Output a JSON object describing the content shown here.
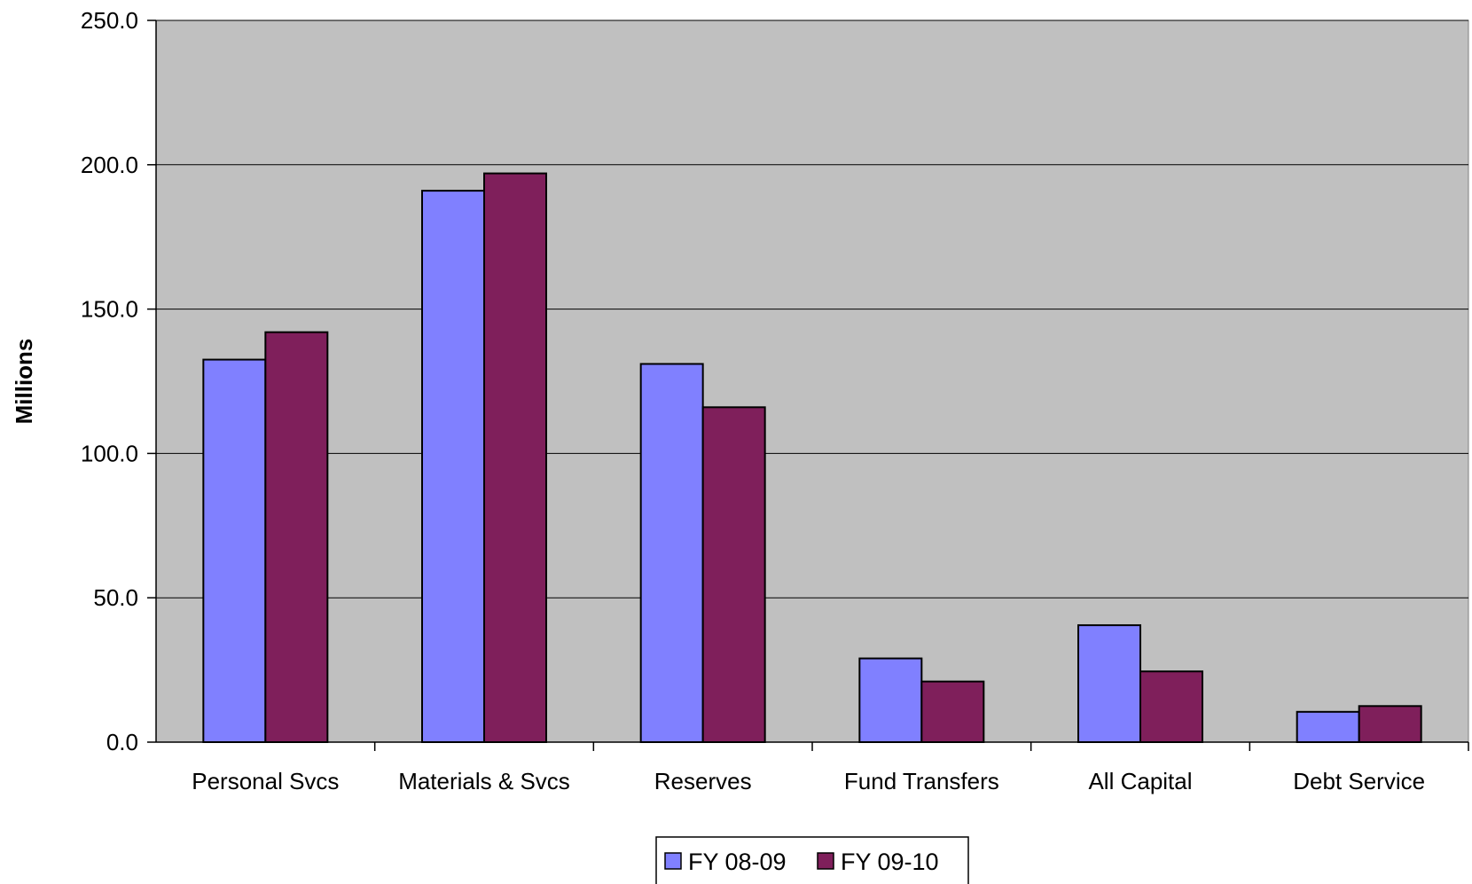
{
  "chart_data": {
    "type": "bar",
    "title": "",
    "xlabel": "",
    "ylabel": "Millions",
    "ylim": [
      0,
      250
    ],
    "yticks": [
      "0.0",
      "50.0",
      "100.0",
      "150.0",
      "200.0",
      "250.0"
    ],
    "categories": [
      "Personal Svcs",
      "Materials & Svcs",
      "Reserves",
      "Fund Transfers",
      "All Capital",
      "Debt Service"
    ],
    "series": [
      {
        "name": "FY 08-09",
        "color": "#8080FF",
        "values": [
          132.5,
          191.0,
          131.0,
          29.0,
          40.5,
          10.5
        ]
      },
      {
        "name": "FY 09-10",
        "color": "#7F1F5B",
        "values": [
          142.0,
          197.0,
          116.0,
          21.0,
          24.5,
          12.5
        ]
      }
    ],
    "grid": true,
    "plot_background": "#C0C0C0",
    "legend": "bottom-center"
  }
}
